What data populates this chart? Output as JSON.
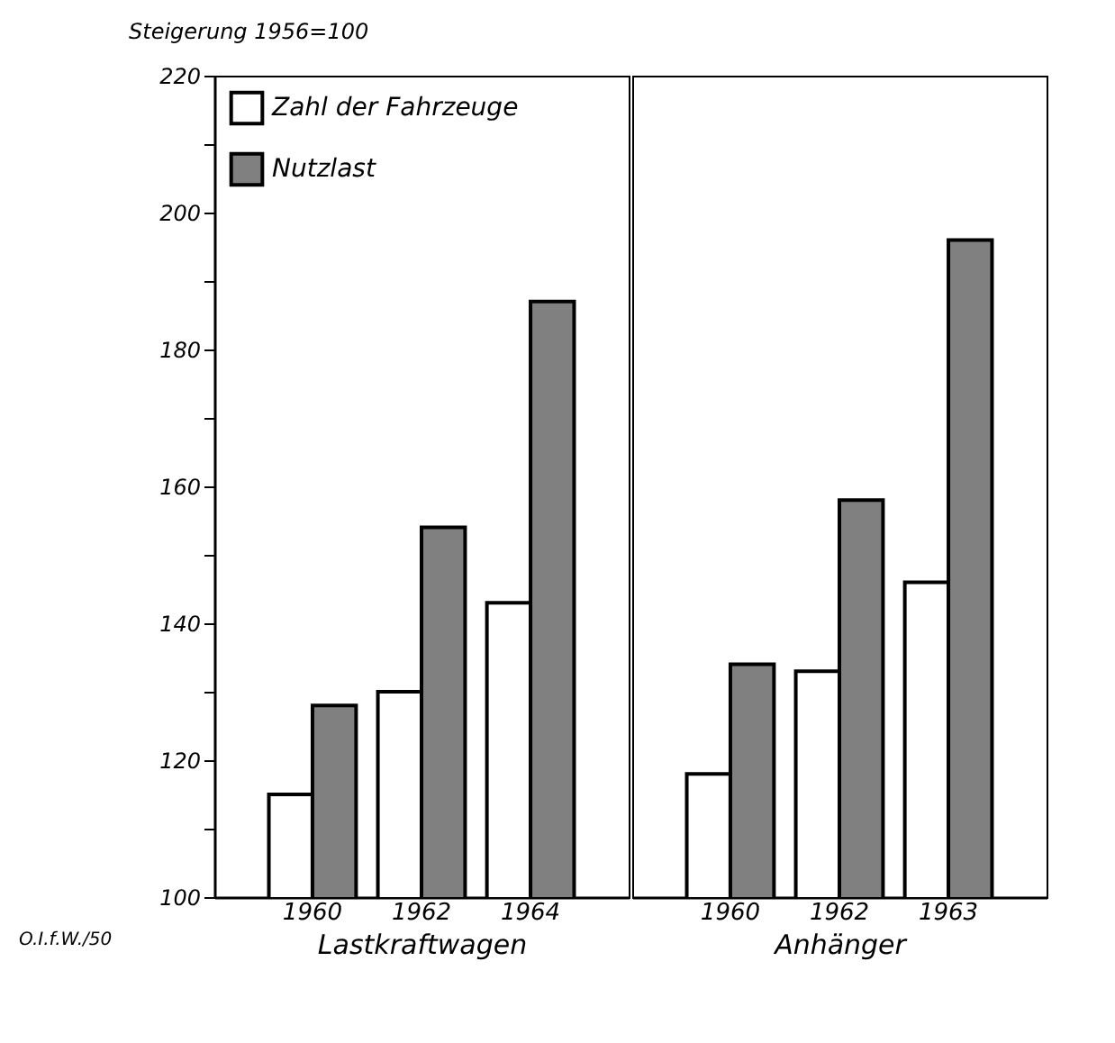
{
  "chart_data": [
    {
      "type": "bar",
      "ylabel": "Steigerung 1956=100",
      "xlabel": "Lastkraftwagen",
      "categories": [
        "1960",
        "1962",
        "1964"
      ],
      "series": [
        {
          "name": "Zahl der Fahrzeuge",
          "color": "#ffffff",
          "values": [
            115,
            130,
            143
          ]
        },
        {
          "name": "Nutzlast",
          "color": "#808080",
          "values": [
            128,
            154,
            187
          ]
        }
      ],
      "ylim": [
        100,
        220
      ],
      "yticks": [
        100,
        {
          "value": 110,
          "label": null
        },
        120,
        {
          "value": 130,
          "label": null
        },
        140,
        {
          "value": 150,
          "label": null
        },
        160,
        {
          "value": 170,
          "label": null
        },
        180,
        {
          "value": 190,
          "label": null
        },
        200,
        {
          "value": 210,
          "label": null
        },
        220
      ],
      "legend": "top left",
      "grid": false,
      "annotations": [
        "O.I.f.W./50"
      ]
    },
    {
      "type": "bar",
      "xlabel": "Anhänger",
      "categories": [
        "1960",
        "1962",
        "1963"
      ],
      "series": [
        {
          "name": "Zahl der Fahrzeuge",
          "color": "#ffffff",
          "values": [
            118,
            133,
            146
          ]
        },
        {
          "name": "Nutzlast",
          "color": "#808080",
          "values": [
            134,
            158,
            196
          ]
        }
      ],
      "ylim": [
        100,
        220
      ],
      "tick_labels": "x",
      "legend": false,
      "grid": false
    }
  ]
}
